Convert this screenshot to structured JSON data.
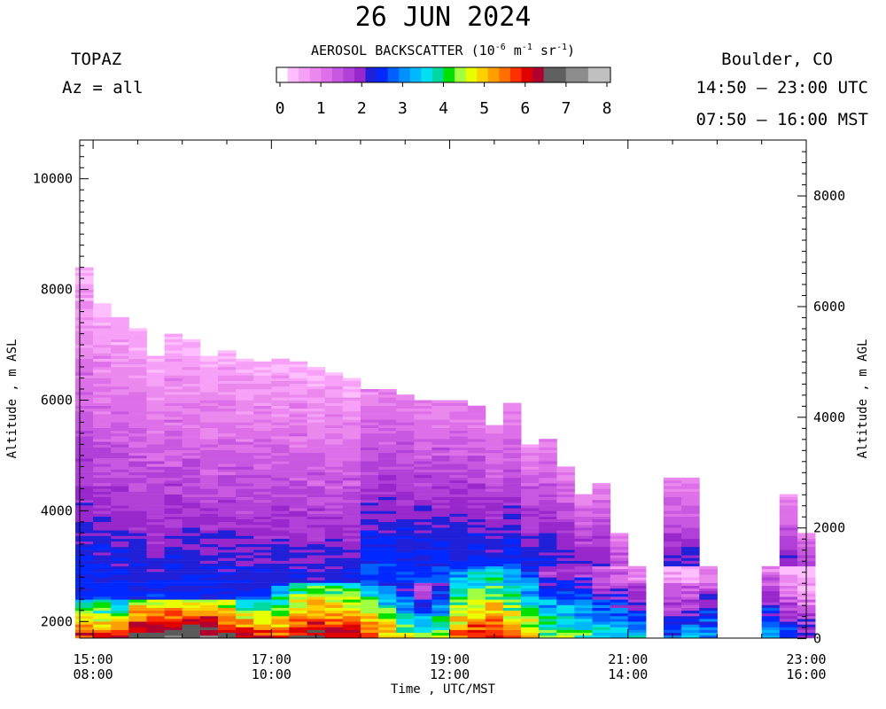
{
  "header": {
    "date": "26 JUN 2024",
    "instrument": "TOPAZ",
    "azimuth": "Az = all",
    "location": "Boulder, CO",
    "utc_range": "14:50 – 23:00 UTC",
    "mst_range": "07:50 – 16:00 MST"
  },
  "colorbar": {
    "title_prefix": "AEROSOL BACKSCATTER (10",
    "exp1": "-6",
    "mid1": " m",
    "exp2": "-1",
    "mid2": " sr",
    "exp3": "-1",
    "suffix": ")",
    "ticks": [
      0,
      1,
      2,
      3,
      4,
      5,
      6,
      7,
      8
    ],
    "colors": [
      "#ffffff",
      "#ffbfff",
      "#f7a0f7",
      "#ea88ee",
      "#dd70e8",
      "#c858e0",
      "#b040d8",
      "#9828cc",
      "#2020d8",
      "#0028ff",
      "#0060ff",
      "#0090ff",
      "#00b8ff",
      "#00e0f0",
      "#00d8a0",
      "#00e000",
      "#a0ff40",
      "#e8ff00",
      "#ffd000",
      "#ffa000",
      "#ff7000",
      "#ff3000",
      "#e00000",
      "#b00030",
      "#606060",
      "#606060",
      "#8c8c8c",
      "#8c8c8c",
      "#c0c0c0",
      "#c0c0c0"
    ]
  },
  "chart_data": {
    "type": "heatmap",
    "title": "26 JUN 2024",
    "xlabel": "Time , UTC/MST",
    "ylabel_left": "Altitude , m ASL",
    "ylabel_right": "Altitude , m AGL",
    "x_ticks_utc": [
      "15:00",
      "17:00",
      "19:00",
      "21:00",
      "23:00"
    ],
    "x_ticks_mst": [
      "08:00",
      "10:00",
      "12:00",
      "14:00",
      "16:00"
    ],
    "x_range_hours_utc": [
      14.85,
      23.0
    ],
    "y_left_ticks": [
      2000,
      4000,
      6000,
      8000,
      10000
    ],
    "y_right_ticks": [
      0,
      2000,
      4000,
      6000,
      8000
    ],
    "y_left_range_m": [
      1700,
      10700
    ],
    "value_range": [
      0,
      8
    ],
    "columns": [
      {
        "t": 14.9,
        "top": 8400,
        "sfc": 4.8,
        "gray": false
      },
      {
        "t": 15.1,
        "top": 7750,
        "sfc": 4.7,
        "gray": false
      },
      {
        "t": 15.3,
        "top": 7500,
        "sfc": 4.6,
        "gray": false
      },
      {
        "t": 15.5,
        "top": 7300,
        "sfc": 5.5,
        "gray": true
      },
      {
        "t": 15.7,
        "top": 6800,
        "sfc": 5.6,
        "gray": true
      },
      {
        "t": 15.9,
        "top": 7200,
        "sfc": 5.7,
        "gray": true
      },
      {
        "t": 16.1,
        "top": 7100,
        "sfc": 5.8,
        "gray": true
      },
      {
        "t": 16.3,
        "top": 6800,
        "sfc": 5.7,
        "gray": true
      },
      {
        "t": 16.5,
        "top": 6900,
        "sfc": 5.4,
        "gray": true
      },
      {
        "t": 16.7,
        "top": 6750,
        "sfc": 5.0,
        "gray": false
      },
      {
        "t": 16.9,
        "top": 6700,
        "sfc": 4.8,
        "gray": false
      },
      {
        "t": 17.1,
        "top": 6750,
        "sfc": 4.5,
        "gray": false
      },
      {
        "t": 17.3,
        "top": 6700,
        "sfc": 5.0,
        "gray": true
      },
      {
        "t": 17.5,
        "top": 6600,
        "sfc": 5.3,
        "gray": true
      },
      {
        "t": 17.7,
        "top": 6500,
        "sfc": 5.1,
        "gray": true
      },
      {
        "t": 17.9,
        "top": 6400,
        "sfc": 5.0,
        "gray": true
      },
      {
        "t": 18.1,
        "top": 6200,
        "sfc": 4.6,
        "gray": false
      },
      {
        "t": 18.3,
        "top": 6200,
        "sfc": 4.2,
        "gray": false
      },
      {
        "t": 18.5,
        "top": 6100,
        "sfc": 3.7,
        "gray": false
      },
      {
        "t": 18.7,
        "top": 6000,
        "sfc": 3.3,
        "gray": false
      },
      {
        "t": 18.9,
        "top": 6000,
        "sfc": 3.6,
        "gray": false
      },
      {
        "t": 19.1,
        "top": 6000,
        "sfc": 4.4,
        "gray": false
      },
      {
        "t": 19.3,
        "top": 5900,
        "sfc": 4.7,
        "gray": false
      },
      {
        "t": 19.5,
        "top": 5550,
        "sfc": 4.7,
        "gray": false
      },
      {
        "t": 19.7,
        "top": 5950,
        "sfc": 4.3,
        "gray": false
      },
      {
        "t": 19.9,
        "top": 5200,
        "sfc": 4.0,
        "gray": false
      },
      {
        "t": 20.1,
        "top": 5300,
        "sfc": 3.5,
        "gray": false
      },
      {
        "t": 20.3,
        "top": 4800,
        "sfc": 3.4,
        "gray": false
      },
      {
        "t": 20.5,
        "top": 4300,
        "sfc": 3.3,
        "gray": false
      },
      {
        "t": 20.7,
        "top": 4500,
        "sfc": 3.0,
        "gray": false
      },
      {
        "t": 20.9,
        "top": 3600,
        "sfc": 2.9,
        "gray": false
      },
      {
        "t": 21.1,
        "top": 3000,
        "sfc": 2.7,
        "gray": false
      },
      {
        "t": 21.5,
        "top": 4600,
        "sfc": 2.3,
        "gray": false
      },
      {
        "t": 21.7,
        "top": 4600,
        "sfc": 2.4,
        "gray": false
      },
      {
        "t": 21.9,
        "top": 3000,
        "sfc": 2.6,
        "gray": false
      },
      {
        "t": 22.6,
        "top": 3000,
        "sfc": 2.7,
        "gray": false
      },
      {
        "t": 22.8,
        "top": 4300,
        "sfc": 2.2,
        "gray": false
      },
      {
        "t": 23.0,
        "top": 3600,
        "sfc": 1.9,
        "gray": false
      }
    ]
  }
}
